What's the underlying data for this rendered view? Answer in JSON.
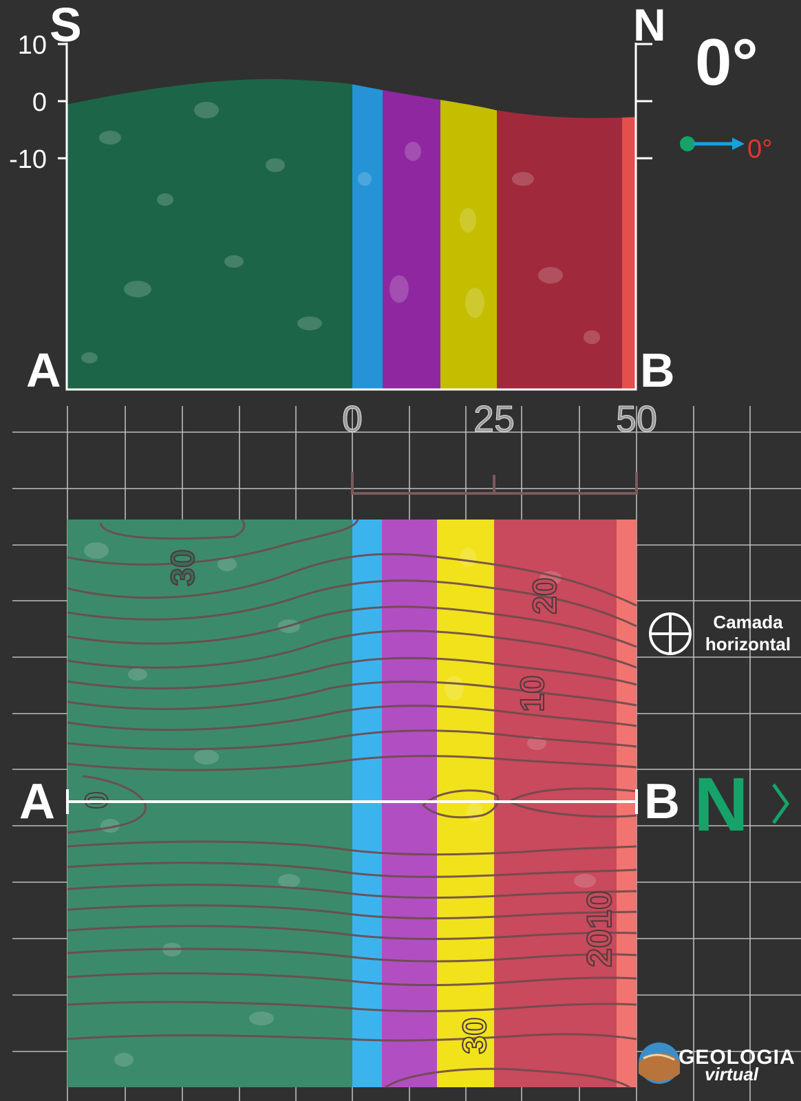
{
  "profile": {
    "left_direction": "S",
    "right_direction": "N",
    "start_label": "A",
    "end_label": "B",
    "elevation_ticks": [
      "10",
      "0",
      "-10"
    ],
    "layers": [
      {
        "name": "green",
        "color": "#1d6548"
      },
      {
        "name": "blue",
        "color": "#2593d6"
      },
      {
        "name": "purple",
        "color": "#8f28a0"
      },
      {
        "name": "yellow",
        "color": "#c4bd00"
      },
      {
        "name": "red",
        "color": "#a02a3c"
      },
      {
        "name": "light-red",
        "color": "#e3504c"
      }
    ]
  },
  "dip": {
    "value_large": "0°",
    "value_small": "0°",
    "arrow_color": "#1a9fe0",
    "dot_color": "#16a36a",
    "small_text_color": "#e8342f"
  },
  "map": {
    "scale_labels": [
      "0",
      "25",
      "50"
    ],
    "contour_labels": [
      "30",
      "20",
      "10",
      "0",
      "2010",
      "30"
    ],
    "section_start": "A",
    "section_end": "B",
    "north_label": "N",
    "north_arrow_icon": "chevron-right-icon",
    "layers": [
      {
        "name": "green",
        "color": "#3c8a6c"
      },
      {
        "name": "blue",
        "color": "#3bb4ee"
      },
      {
        "name": "purple",
        "color": "#b14fc2"
      },
      {
        "name": "yellow",
        "color": "#f1e21c"
      },
      {
        "name": "red",
        "color": "#c84a5c"
      },
      {
        "name": "light-red",
        "color": "#f17470"
      }
    ]
  },
  "legend": {
    "symbol_icon": "horizontal-bed-symbol-icon",
    "label_line1": "Camada",
    "label_line2": "horizontal"
  },
  "logo": {
    "line1": "GEOLOGIA",
    "line2": "virtual"
  }
}
